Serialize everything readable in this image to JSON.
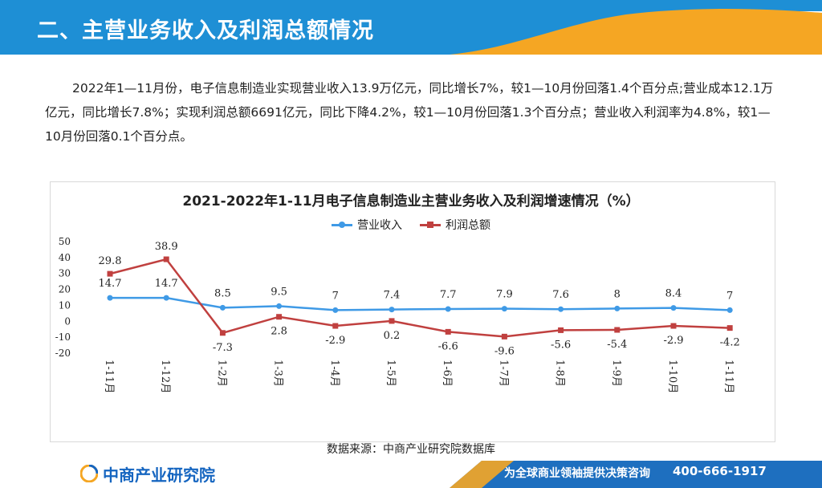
{
  "header": {
    "title": "二、主营业务收入及利润总额情况"
  },
  "summary": {
    "text": "2022年1—11月份，电子信息制造业实现营业收入13.9万亿元，同比增长7%，较1—10月份回落1.4个百分点;营业成本12.1万亿元，同比增长7.8%；实现利润总额6691亿元，同比下降4.2%，较1—10月份回落1.3个百分点；营业收入利润率为4.8%，较1—10月份回落0.1个百分点。"
  },
  "chart_data": {
    "type": "line",
    "title": "2021-2022年1-11月电子信息制造业主营业务收入及利润增速情况（%）",
    "categories": [
      "1-11月",
      "1-12月",
      "1-2月",
      "1-3月",
      "1-4月",
      "1-5月",
      "1-6月",
      "1-7月",
      "1-8月",
      "1-9月",
      "1-10月",
      "1-11月"
    ],
    "series": [
      {
        "name": "营业收入",
        "color": "#3f9ae6",
        "values": [
          14.7,
          14.7,
          8.5,
          9.5,
          7,
          7.4,
          7.7,
          7.9,
          7.6,
          8,
          8.4,
          7
        ]
      },
      {
        "name": "利润总额",
        "color": "#c0403f",
        "values": [
          29.8,
          38.9,
          -7.3,
          2.8,
          -2.9,
          0.2,
          -6.6,
          -9.6,
          -5.6,
          -5.4,
          -2.9,
          -4.2
        ]
      }
    ],
    "yticks": [
      50,
      40,
      30,
      20,
      10,
      0,
      -10,
      -20
    ],
    "ylim": [
      -20,
      50
    ],
    "xlabel": "",
    "ylabel": "",
    "grid": false,
    "legend": "top-center"
  },
  "source": {
    "text": "数据来源：中商产业研究院数据库"
  },
  "footer": {
    "logo_text": "中商产业研究院",
    "slogan": "为全球商业领袖提供决策咨询",
    "phone": "400-666-1917"
  },
  "colors": {
    "header_blue": "#1e8fd5",
    "accent_orange": "#f5a623",
    "footer_blue": "#1e6fbf"
  }
}
